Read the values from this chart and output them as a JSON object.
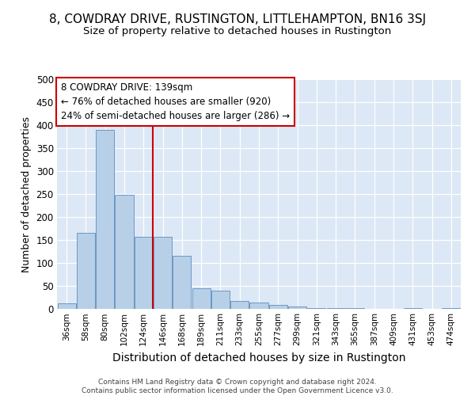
{
  "title": "8, COWDRAY DRIVE, RUSTINGTON, LITTLEHAMPTON, BN16 3SJ",
  "subtitle": "Size of property relative to detached houses in Rustington",
  "xlabel": "Distribution of detached houses by size in Rustington",
  "ylabel": "Number of detached properties",
  "categories": [
    "36sqm",
    "58sqm",
    "80sqm",
    "102sqm",
    "124sqm",
    "146sqm",
    "168sqm",
    "189sqm",
    "211sqm",
    "233sqm",
    "255sqm",
    "277sqm",
    "299sqm",
    "321sqm",
    "343sqm",
    "365sqm",
    "387sqm",
    "409sqm",
    "431sqm",
    "453sqm",
    "474sqm"
  ],
  "values": [
    12,
    165,
    390,
    248,
    157,
    157,
    115,
    45,
    40,
    18,
    14,
    8,
    6,
    1,
    1,
    2,
    0,
    0,
    1,
    0,
    1
  ],
  "bar_color": "#b8cfe8",
  "bar_edge_color": "#5a8fbe",
  "background_color": "#dce8f5",
  "vline_color": "#cc0000",
  "vline_x_index": 5,
  "annotation_text": "8 COWDRAY DRIVE: 139sqm\n← 76% of detached houses are smaller (920)\n24% of semi-detached houses are larger (286) →",
  "annotation_box_color": "#ffffff",
  "annotation_box_edge_color": "#cc0000",
  "ylim": [
    0,
    500
  ],
  "yticks": [
    0,
    50,
    100,
    150,
    200,
    250,
    300,
    350,
    400,
    450,
    500
  ],
  "footer": "Contains HM Land Registry data © Crown copyright and database right 2024.\nContains public sector information licensed under the Open Government Licence v3.0.",
  "title_fontsize": 11,
  "subtitle_fontsize": 9.5,
  "ylabel_fontsize": 9,
  "xlabel_fontsize": 10
}
